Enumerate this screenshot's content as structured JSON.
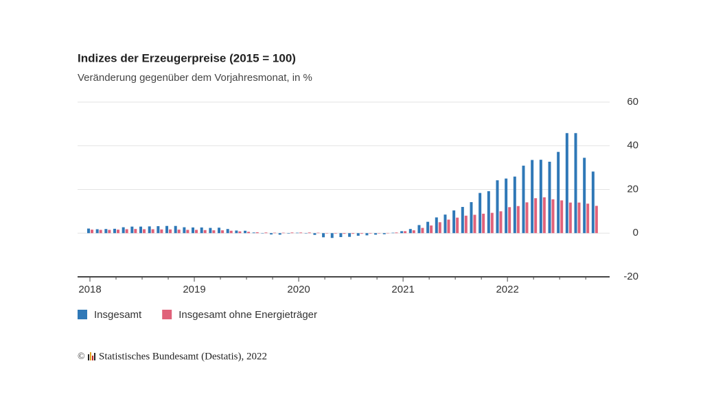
{
  "chart_data": {
    "type": "bar",
    "title": "Indizes der Erzeugerpreise (2015 = 100)",
    "subtitle": "Veränderung gegenüber dem Vorjahresmonat, in %",
    "source": "Statistisches Bundesamt (Destatis), 2022",
    "categories": [
      "2018",
      null,
      null,
      null,
      null,
      null,
      null,
      null,
      null,
      null,
      null,
      null,
      "2019",
      null,
      null,
      null,
      null,
      null,
      null,
      null,
      null,
      null,
      null,
      null,
      "2020",
      null,
      null,
      null,
      null,
      null,
      null,
      null,
      null,
      null,
      null,
      null,
      "2021",
      null,
      null,
      null,
      null,
      null,
      null,
      null,
      null,
      null,
      null,
      null,
      "2022",
      null,
      null,
      null,
      null,
      null,
      null,
      null,
      null,
      null,
      null
    ],
    "series": [
      {
        "name": "Insgesamt",
        "color": "#2f78b7",
        "values": [
          2.1,
          1.8,
          1.9,
          2.0,
          2.7,
          3.0,
          3.0,
          3.1,
          3.2,
          3.3,
          3.3,
          2.7,
          2.6,
          2.6,
          2.4,
          2.5,
          1.9,
          1.2,
          1.1,
          0.3,
          -0.1,
          -0.6,
          -0.7,
          -0.2,
          0.2,
          -0.1,
          -0.8,
          -1.9,
          -2.2,
          -1.8,
          -1.7,
          -1.2,
          -1.0,
          -0.7,
          -0.5,
          0.2,
          0.9,
          1.9,
          3.7,
          5.2,
          7.2,
          8.5,
          10.4,
          12.0,
          14.2,
          18.4,
          19.2,
          24.2,
          25.0,
          25.9,
          30.9,
          33.5,
          33.6,
          32.7,
          37.2,
          45.8,
          45.8,
          34.5,
          28.2
        ]
      },
      {
        "name": "Insgesamt ohne Energieträger",
        "color": "#e0627a",
        "values": [
          1.6,
          1.5,
          1.5,
          1.6,
          1.8,
          1.9,
          1.8,
          1.8,
          1.7,
          1.7,
          1.6,
          1.5,
          1.5,
          1.4,
          1.3,
          1.3,
          1.1,
          0.8,
          0.6,
          0.4,
          0.3,
          0.2,
          0.2,
          0.3,
          0.3,
          0.3,
          0.2,
          0.0,
          -0.2,
          -0.3,
          -0.3,
          -0.3,
          -0.2,
          0.0,
          0.1,
          0.3,
          0.9,
          1.3,
          2.4,
          3.5,
          5.0,
          6.2,
          7.1,
          8.0,
          8.4,
          8.9,
          9.3,
          10.0,
          11.9,
          12.4,
          14.1,
          16.0,
          16.4,
          15.5,
          15.0,
          14.0,
          14.0,
          13.5,
          12.5
        ]
      }
    ],
    "ylim": [
      -20,
      60
    ],
    "yticks": [
      -20,
      0,
      20,
      40,
      60
    ],
    "grid": true,
    "legend": "bottom-left"
  }
}
